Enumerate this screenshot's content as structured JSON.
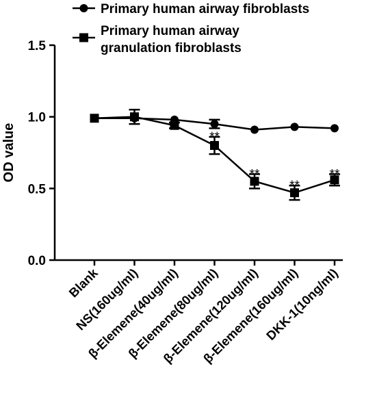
{
  "chart_data": {
    "type": "line",
    "categories": [
      "Blank",
      "NS(160ug/ml)",
      "β-Elemene(40ug/ml)",
      "β-Elemene(80ug/ml)",
      "β-Elemene(120ug/ml)",
      "β-Elemene(160ug/ml)",
      "DKK-1(10ng/ml)"
    ],
    "ylabel": "OD value",
    "xlabel": "",
    "ylim": [
      0,
      1.5
    ],
    "yticks": [
      "0.0",
      "0.5",
      "1.0",
      "1.5"
    ],
    "legend_position": "top",
    "series": [
      {
        "name": "Primary human airway fibroblasts",
        "marker": "circle",
        "values": [
          0.99,
          0.99,
          0.98,
          0.95,
          0.91,
          0.93,
          0.92
        ],
        "errors": [
          0.01,
          0.01,
          0.01,
          0.03,
          0.01,
          0.01,
          0.01
        ],
        "significance": [
          "",
          "",
          "",
          "",
          "",
          "",
          ""
        ]
      },
      {
        "name": "Primary human airway granulation fibroblasts",
        "marker": "square",
        "values": [
          0.99,
          1.0,
          0.94,
          0.8,
          0.55,
          0.47,
          0.56
        ],
        "errors": [
          0.01,
          0.05,
          0.02,
          0.06,
          0.05,
          0.05,
          0.04
        ],
        "significance": [
          "",
          "",
          "",
          "**",
          "**",
          "**",
          "**"
        ]
      }
    ],
    "legend_lines": [
      [
        "Primary human airway fibroblasts"
      ],
      [
        "Primary human airway",
        "granulation fibroblasts"
      ]
    ],
    "grid": false
  }
}
